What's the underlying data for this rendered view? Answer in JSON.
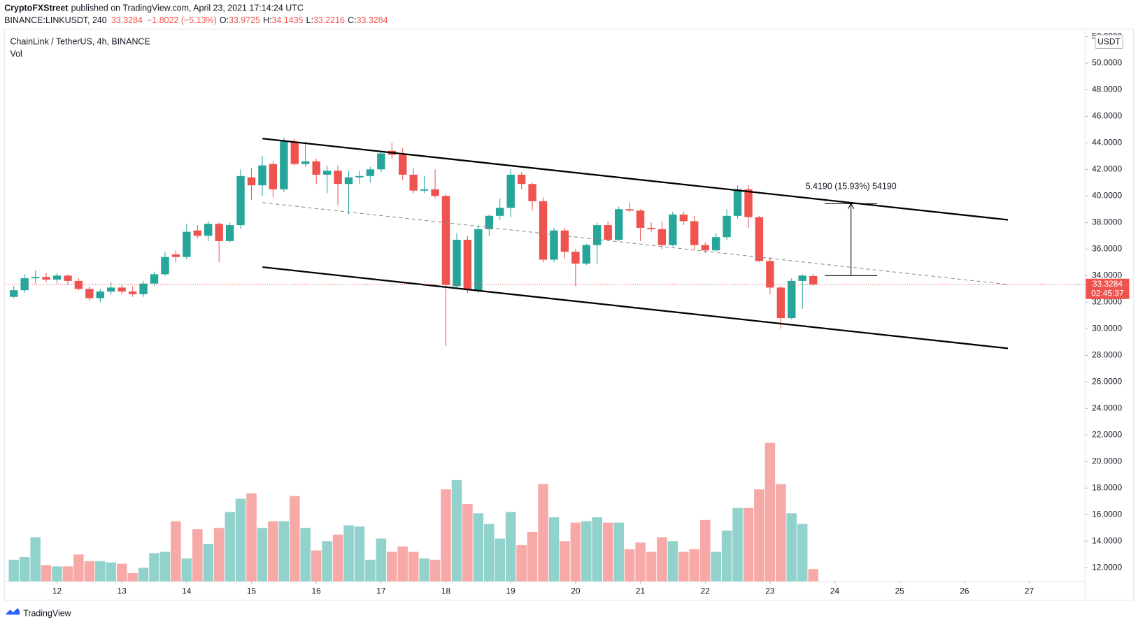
{
  "header": {
    "publisher": "CryptoFXStreet",
    "published": "published on TradingView.com, April 23, 2021 17:14:24 UTC",
    "symbol": "BINANCE:LINKUSDT, 240",
    "last": "33.3284",
    "change": "−1.8022 (−5.13%)",
    "ohlc": [
      {
        "key": "O:",
        "value": "33.9725"
      },
      {
        "key": "H:",
        "value": "34.1435"
      },
      {
        "key": "L:",
        "value": "33.2216"
      },
      {
        "key": "C:",
        "value": "33.3284"
      }
    ]
  },
  "footer": {
    "brand": "TradingView"
  },
  "chart_data": {
    "type": "candlestick",
    "title": "ChainLink / TetherUS, 4h, BINANCE",
    "indicator": "Vol",
    "currency": "USDT",
    "x": [
      11.333,
      11.5,
      11.667,
      11.833,
      12,
      12.167,
      12.333,
      12.5,
      12.667,
      12.833,
      13,
      13.167,
      13.333,
      13.5,
      13.667,
      13.833,
      14,
      14.167,
      14.333,
      14.5,
      14.667,
      14.833,
      15,
      15.167,
      15.333,
      15.5,
      15.667,
      15.833,
      16,
      16.167,
      16.333,
      16.5,
      16.667,
      16.833,
      17,
      17.167,
      17.333,
      17.5,
      17.667,
      17.833,
      18,
      18.167,
      18.333,
      18.5,
      18.667,
      18.833,
      19,
      19.167,
      19.333,
      19.5,
      19.667,
      19.833,
      20,
      20.167,
      20.333,
      20.5,
      20.667,
      20.833,
      21,
      21.167,
      21.333,
      21.5,
      21.667,
      21.833,
      22,
      22.167,
      22.333,
      22.5,
      22.667,
      22.833,
      23,
      23.167,
      23.333,
      23.5,
      23.667
    ],
    "open": [
      32.4,
      32.9,
      33.8,
      33.9,
      33.7,
      34.0,
      33.6,
      33.0,
      32.3,
      32.8,
      33.1,
      32.8,
      32.6,
      33.4,
      34.1,
      35.6,
      35.4,
      37.4,
      37.0,
      37.9,
      36.6,
      37.8,
      41.4,
      40.8,
      42.4,
      40.5,
      44.1,
      42.4,
      42.6,
      41.6,
      41.9,
      40.9,
      41.4,
      41.5,
      42.0,
      43.4,
      43.1,
      41.6,
      40.4,
      40.5,
      40.0,
      33.2,
      36.7,
      32.9,
      37.5,
      38.5,
      39.1,
      41.6,
      40.9,
      39.6,
      35.2,
      37.4,
      35.8,
      34.9,
      36.3,
      37.8,
      36.7,
      39.0,
      38.9,
      37.6,
      37.5,
      36.3,
      38.6,
      38.1,
      36.3,
      35.9,
      36.9,
      38.5,
      40.5,
      38.4,
      35.1,
      33.1,
      30.8,
      33.6,
      33.9725
    ],
    "high": [
      33.2,
      34.1,
      34.4,
      34.2,
      34.2,
      34.1,
      33.8,
      33.2,
      33.0,
      33.5,
      33.3,
      33.2,
      33.6,
      34.3,
      35.8,
      35.9,
      37.9,
      37.8,
      38.1,
      38.0,
      38.0,
      42.0,
      42.1,
      43.0,
      42.6,
      44.4,
      44.3,
      44.1,
      42.8,
      42.3,
      42.3,
      41.9,
      41.9,
      42.2,
      43.4,
      44.0,
      43.6,
      42.1,
      41.5,
      42.0,
      40.1,
      37.2,
      37.0,
      37.8,
      38.6,
      39.8,
      42.0,
      41.8,
      41.0,
      39.9,
      37.6,
      37.6,
      36.0,
      36.4,
      38.0,
      38.1,
      39.2,
      39.5,
      39.0,
      38.0,
      38.1,
      38.8,
      38.8,
      38.5,
      36.5,
      37.2,
      39.0,
      40.8,
      40.8,
      38.5,
      35.4,
      33.2,
      33.8,
      34.1,
      34.1435
    ],
    "low": [
      32.3,
      32.7,
      33.4,
      33.5,
      33.4,
      33.3,
      32.9,
      32.1,
      32.0,
      32.6,
      32.6,
      32.4,
      32.4,
      33.2,
      34.0,
      35.0,
      35.2,
      36.8,
      36.6,
      35.0,
      36.5,
      37.5,
      39.7,
      40.0,
      39.9,
      40.3,
      42.3,
      42.2,
      40.9,
      40.2,
      39.3,
      38.6,
      40.9,
      41.0,
      41.8,
      42.8,
      41.2,
      40.2,
      40.2,
      39.8,
      28.7,
      33.0,
      32.7,
      32.7,
      37.0,
      38.2,
      38.4,
      40.5,
      38.9,
      35.0,
      35.0,
      35.3,
      33.2,
      34.8,
      34.9,
      36.6,
      36.6,
      38.8,
      36.6,
      37.3,
      36.0,
      36.2,
      37.8,
      35.9,
      35.7,
      35.8,
      36.7,
      38.3,
      37.6,
      35.0,
      32.6,
      30.0,
      30.7,
      31.5,
      33.2216
    ],
    "close": [
      32.9,
      33.8,
      33.9,
      33.7,
      34.0,
      33.6,
      33.0,
      32.3,
      32.8,
      33.1,
      32.8,
      32.6,
      33.4,
      34.1,
      35.4,
      35.4,
      37.3,
      37.0,
      37.9,
      36.6,
      37.8,
      41.5,
      40.8,
      42.3,
      40.5,
      44.1,
      42.4,
      42.6,
      41.6,
      41.9,
      40.9,
      41.4,
      41.5,
      42.0,
      43.2,
      43.1,
      41.6,
      40.4,
      40.5,
      40.0,
      33.3,
      36.7,
      32.9,
      37.5,
      38.5,
      39.1,
      41.6,
      40.9,
      39.6,
      35.2,
      37.4,
      35.8,
      34.9,
      36.3,
      37.8,
      36.7,
      39.0,
      38.9,
      37.6,
      37.5,
      36.3,
      38.6,
      38.1,
      36.3,
      35.9,
      36.9,
      38.5,
      40.5,
      38.4,
      35.1,
      33.1,
      30.8,
      33.6,
      34.0,
      33.3284
    ],
    "volume": [
      12.6,
      12.8,
      14.3,
      12.2,
      12.1,
      12.1,
      13.0,
      12.5,
      12.5,
      12.4,
      12.3,
      11.6,
      12.0,
      13.1,
      13.2,
      15.5,
      12.7,
      14.9,
      13.8,
      15.0,
      16.2,
      17.2,
      17.6,
      15.0,
      15.5,
      15.5,
      17.4,
      15.0,
      13.3,
      14.0,
      14.5,
      15.2,
      15.1,
      12.6,
      14.2,
      13.2,
      13.6,
      13.2,
      12.7,
      12.6,
      17.9,
      18.6,
      16.8,
      16.1,
      15.3,
      14.2,
      16.2,
      13.7,
      14.7,
      18.3,
      15.8,
      14.0,
      15.4,
      15.5,
      15.8,
      15.4,
      15.4,
      13.4,
      13.9,
      13.2,
      14.3,
      14.0,
      13.2,
      13.4,
      15.6,
      13.2,
      14.8,
      16.5,
      16.5,
      17.9,
      21.4,
      18.3,
      16.1,
      15.3,
      11.9
    ],
    "up_color": "#26a69a",
    "down_color": "#ef5350",
    "xlim": [
      11.21,
      27.86
    ],
    "xticks": [
      12,
      13,
      14,
      15,
      16,
      17,
      18,
      19,
      20,
      21,
      22,
      23,
      24,
      25,
      26,
      27
    ],
    "ylim": [
      10.98,
      52.57
    ],
    "yticks": [
      {
        "value": 12,
        "label": "12.0000"
      },
      {
        "value": 14,
        "label": "14.0000"
      },
      {
        "value": 16,
        "label": "16.0000"
      },
      {
        "value": 18,
        "label": "18.0000"
      },
      {
        "value": 20,
        "label": "20.0000"
      },
      {
        "value": 22,
        "label": "22.0000"
      },
      {
        "value": 24,
        "label": "24.0000"
      },
      {
        "value": 26,
        "label": "26.0000"
      },
      {
        "value": 28,
        "label": "28.0000"
      },
      {
        "value": 30,
        "label": "30.0000"
      },
      {
        "value": 32,
        "label": "32.0000"
      },
      {
        "value": 34,
        "label": "34.0000"
      },
      {
        "value": 36,
        "label": "36.0000"
      },
      {
        "value": 38,
        "label": "38.0000"
      },
      {
        "value": 40,
        "label": "40.0000"
      },
      {
        "value": 42,
        "label": "42.0000"
      },
      {
        "value": 44,
        "label": "44.0000"
      },
      {
        "value": 46,
        "label": "46.0000"
      },
      {
        "value": 48,
        "label": "48.0000"
      },
      {
        "value": 50,
        "label": "50.0000"
      },
      {
        "value": 52,
        "label": "52.0000"
      }
    ],
    "last_price": 33.3284,
    "countdown": "02:45:37",
    "channel": [
      {
        "style": "solid",
        "points": [
          [
            15.17,
            44.32
          ],
          [
            26.67,
            38.2
          ]
        ]
      },
      {
        "style": "solid",
        "points": [
          [
            15.17,
            34.64
          ],
          [
            26.67,
            28.52
          ]
        ]
      },
      {
        "style": "dashed",
        "points": [
          [
            15.17,
            39.5
          ],
          [
            26.67,
            33.33
          ]
        ]
      }
    ],
    "measure": {
      "x": 24.25,
      "from": 34.0,
      "to": 39.419,
      "label": "5.4190 (15.93%) 54190"
    }
  }
}
